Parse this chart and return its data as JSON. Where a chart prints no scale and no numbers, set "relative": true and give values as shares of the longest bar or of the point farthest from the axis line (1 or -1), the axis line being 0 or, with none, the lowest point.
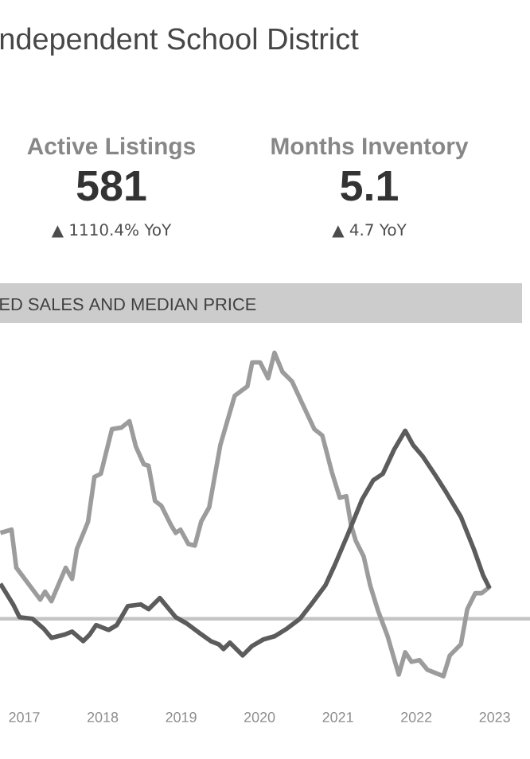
{
  "chart_data": [
    {
      "type": "other",
      "title": "ndependent School District",
      "annotations": [
        "Active Listings",
        "581",
        "▲ 1110.4% YoY",
        "Months Inventory",
        "5.1",
        "▲ 4.7 YoY"
      ]
    },
    {
      "type": "line",
      "title": "ED SALES AND MEDIAN PRICE",
      "relative": true,
      "xlim": [
        2016.69,
        2023.45
      ],
      "xticks": [
        2017,
        2018,
        2019,
        2020,
        2021,
        2022,
        2023
      ],
      "ref_lines": [
        {
          "axis": "y",
          "value": 0,
          "color": "#c4c4c4"
        }
      ],
      "series": [
        {
          "color": "#9c9c9c",
          "x": [
            2016.695,
            2016.837,
            2016.898,
            2017.203,
            2017.264,
            2017.346,
            2017.528,
            2017.61,
            2017.671,
            2017.772,
            2017.813,
            2017.894,
            2017.976,
            2018.118,
            2018.24,
            2018.341,
            2018.423,
            2018.524,
            2018.585,
            2018.667,
            2018.748,
            2018.87,
            2018.931,
            2018.992,
            2019.093,
            2019.175,
            2019.256,
            2019.358,
            2019.5,
            2019.683,
            2019.846,
            2019.907,
            2020.008,
            2020.11,
            2020.191,
            2020.293,
            2020.415,
            2020.557,
            2020.699,
            2020.801,
            2020.923,
            2021.024,
            2021.106,
            2021.167,
            2021.228,
            2021.329,
            2021.411,
            2021.512,
            2021.634,
            2021.776,
            2021.858,
            2021.939,
            2022.041,
            2022.142,
            2022.244,
            2022.346,
            2022.427,
            2022.569,
            2022.65,
            2022.752,
            2022.833,
            2022.935
          ],
          "values": [
            0.323,
            0.335,
            0.192,
            0.072,
            0.102,
            0.066,
            0.192,
            0.15,
            0.263,
            0.335,
            0.365,
            0.533,
            0.545,
            0.713,
            0.719,
            0.743,
            0.647,
            0.581,
            0.575,
            0.443,
            0.425,
            0.353,
            0.323,
            0.335,
            0.281,
            0.275,
            0.365,
            0.419,
            0.653,
            0.838,
            0.874,
            0.964,
            0.964,
            0.904,
            1,
            0.928,
            0.892,
            0.802,
            0.713,
            0.689,
            0.551,
            0.455,
            0.461,
            0.353,
            0.293,
            0.234,
            0.126,
            0.03,
            -0.066,
            -0.21,
            -0.126,
            -0.162,
            -0.156,
            -0.192,
            -0.204,
            -0.216,
            -0.138,
            -0.096,
            0.036,
            0.096,
            0.096,
            0.12
          ]
        },
        {
          "color": "#5c5c5c",
          "x": [
            2016.695,
            2016.858,
            2016.939,
            2017.102,
            2017.244,
            2017.346,
            2017.508,
            2017.61,
            2017.752,
            2017.833,
            2017.915,
            2018.077,
            2018.179,
            2018.321,
            2018.484,
            2018.585,
            2018.728,
            2018.931,
            2019.073,
            2019.236,
            2019.378,
            2019.48,
            2019.541,
            2019.622,
            2019.785,
            2019.907,
            2020.049,
            2020.191,
            2020.354,
            2020.516,
            2020.659,
            2020.841,
            2020.963,
            2021.126,
            2021.309,
            2021.451,
            2021.573,
            2021.715,
            2021.858,
            2021.959,
            2022.081,
            2022.244,
            2022.386,
            2022.569,
            2022.732,
            2022.854,
            2022.935
          ],
          "values": [
            0.132,
            0.054,
            0.006,
            0,
            -0.036,
            -0.072,
            -0.06,
            -0.048,
            -0.084,
            -0.06,
            -0.024,
            -0.042,
            -0.024,
            0.048,
            0.054,
            0.036,
            0.078,
            0.006,
            -0.018,
            -0.054,
            -0.084,
            -0.096,
            -0.114,
            -0.09,
            -0.138,
            -0.102,
            -0.078,
            -0.066,
            -0.036,
            0,
            0.054,
            0.126,
            0.204,
            0.317,
            0.449,
            0.521,
            0.545,
            0.635,
            0.707,
            0.653,
            0.611,
            0.539,
            0.473,
            0.383,
            0.263,
            0.162,
            0.114
          ]
        }
      ]
    }
  ]
}
